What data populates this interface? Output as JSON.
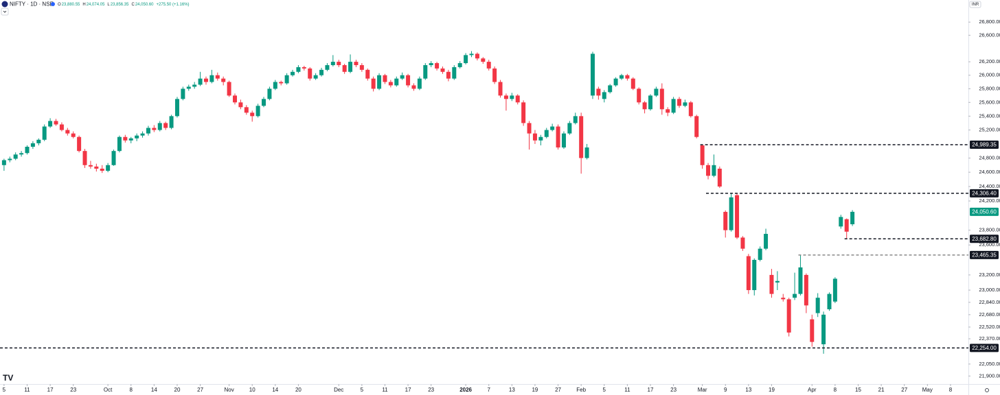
{
  "header": {
    "symbol": "NIFTY · 1D · NSE",
    "fields": [
      {
        "label": "O",
        "value": "23,880.55"
      },
      {
        "label": "H",
        "value": "24,074.05"
      },
      {
        "label": "L",
        "value": "23,856.35"
      },
      {
        "label": "C",
        "value": "24,050.60"
      }
    ],
    "change": "+275.50 (+1.16%)",
    "currency": "INR"
  },
  "chart_data": {
    "type": "candlestick",
    "log_scale": true,
    "up_color": "#089981",
    "down_color": "#f23645",
    "ylim": [
      21800,
      27140
    ],
    "xlim": [
      -0.7,
      167.1
    ],
    "yticks": [
      {
        "value": 26800,
        "label": "26,800.00"
      },
      {
        "value": 26600,
        "label": "26,600.00"
      },
      {
        "value": 26200,
        "label": "26,200.00"
      },
      {
        "value": 26000,
        "label": "26,000.00"
      },
      {
        "value": 25800,
        "label": "25,800.00"
      },
      {
        "value": 25600,
        "label": "25,600.00"
      },
      {
        "value": 25400,
        "label": "25,400.00"
      },
      {
        "value": 25200,
        "label": "25,200.00"
      },
      {
        "value": 24800,
        "label": "24,800.00"
      },
      {
        "value": 24600,
        "label": "24,600.00"
      },
      {
        "value": 24400,
        "label": "24,400.00"
      },
      {
        "value": 24200,
        "label": "24,200.00"
      },
      {
        "value": 23800,
        "label": "23,800.00"
      },
      {
        "value": 23600,
        "label": "23,600.00"
      },
      {
        "value": 23200,
        "label": "23,200.00"
      },
      {
        "value": 23000,
        "label": "23,000.00"
      },
      {
        "value": 22840,
        "label": "22,840.00"
      },
      {
        "value": 22680,
        "label": "22,680.00"
      },
      {
        "value": 22520,
        "label": "22,520.00"
      },
      {
        "value": 22370,
        "label": "22,370.00"
      },
      {
        "value": 22050,
        "label": "22,050.00"
      },
      {
        "value": 21900,
        "label": "21,900.00"
      }
    ],
    "xticks": [
      {
        "value": 0,
        "label": "5"
      },
      {
        "value": 4,
        "label": "11"
      },
      {
        "value": 8,
        "label": "17"
      },
      {
        "value": 12,
        "label": "23"
      },
      {
        "value": 18,
        "label": "Oct"
      },
      {
        "value": 22,
        "label": "8"
      },
      {
        "value": 26,
        "label": "14"
      },
      {
        "value": 30,
        "label": "20"
      },
      {
        "value": 34,
        "label": "27"
      },
      {
        "value": 39,
        "label": "Nov"
      },
      {
        "value": 43,
        "label": "10"
      },
      {
        "value": 47,
        "label": "14"
      },
      {
        "value": 51,
        "label": "20"
      },
      {
        "value": 58,
        "label": "Dec"
      },
      {
        "value": 62,
        "label": "5"
      },
      {
        "value": 66,
        "label": "11"
      },
      {
        "value": 70,
        "label": "17"
      },
      {
        "value": 74,
        "label": "23"
      },
      {
        "value": 80,
        "label": "2026"
      },
      {
        "value": 84,
        "label": "7"
      },
      {
        "value": 88,
        "label": "13"
      },
      {
        "value": 92,
        "label": "19"
      },
      {
        "value": 96,
        "label": "27"
      },
      {
        "value": 100,
        "label": "Feb"
      },
      {
        "value": 104,
        "label": "5"
      },
      {
        "value": 108,
        "label": "11"
      },
      {
        "value": 112,
        "label": "17"
      },
      {
        "value": 116,
        "label": "23"
      },
      {
        "value": 121,
        "label": "Mar"
      },
      {
        "value": 125,
        "label": "9"
      },
      {
        "value": 129,
        "label": "13"
      },
      {
        "value": 133,
        "label": "19"
      },
      {
        "value": 140,
        "label": "Apr"
      },
      {
        "value": 144,
        "label": "8"
      },
      {
        "value": 148,
        "label": "15"
      },
      {
        "value": 152,
        "label": "21"
      },
      {
        "value": 156,
        "label": "27"
      },
      {
        "value": 160,
        "label": "May"
      },
      {
        "value": 164,
        "label": "8"
      }
    ],
    "levels": [
      {
        "value": 24989.35,
        "label": "24,989.35",
        "from_index": 121,
        "color": "#131722"
      },
      {
        "value": 24306.4,
        "label": "24,306.40",
        "from_index": 122,
        "color": "#131722"
      },
      {
        "value": 23682.8,
        "label": "23,682.80",
        "from_index": 146,
        "color": "#131722"
      },
      {
        "value": 23465.35,
        "label": "23,465.35",
        "from_index": 138,
        "color": "#888888"
      },
      {
        "value": 22254.0,
        "label": "22,254.00",
        "from_index": 0,
        "color": "#131722"
      }
    ],
    "last_price": {
      "value": 24050.6,
      "label": "24,050.60"
    },
    "ohlc": [
      [
        24700,
        24790,
        24620,
        24770
      ],
      [
        24770,
        24820,
        24740,
        24790
      ],
      [
        24790,
        24880,
        24770,
        24850
      ],
      [
        24850,
        24900,
        24820,
        24870
      ],
      [
        24870,
        24980,
        24850,
        24960
      ],
      [
        24960,
        25040,
        24930,
        25010
      ],
      [
        25010,
        25080,
        24980,
        25060
      ],
      [
        25060,
        25280,
        25040,
        25250
      ],
      [
        25250,
        25370,
        25230,
        25330
      ],
      [
        25330,
        25360,
        25260,
        25280
      ],
      [
        25280,
        25310,
        25180,
        25200
      ],
      [
        25200,
        25230,
        25120,
        25150
      ],
      [
        25150,
        25180,
        25080,
        25100
      ],
      [
        25100,
        25120,
        24880,
        24900
      ],
      [
        24900,
        24930,
        24660,
        24700
      ],
      [
        24700,
        24760,
        24650,
        24680
      ],
      [
        24680,
        24720,
        24610,
        24650
      ],
      [
        24650,
        24700,
        24590,
        24620
      ],
      [
        24620,
        24730,
        24600,
        24700
      ],
      [
        24700,
        24920,
        24690,
        24900
      ],
      [
        24900,
        25120,
        24880,
        25100
      ],
      [
        25100,
        25130,
        25020,
        25050
      ],
      [
        25050,
        25100,
        25010,
        25080
      ],
      [
        25080,
        25150,
        25040,
        25120
      ],
      [
        25120,
        25180,
        25090,
        25150
      ],
      [
        25150,
        25260,
        25120,
        25230
      ],
      [
        25230,
        25270,
        25170,
        25200
      ],
      [
        25200,
        25330,
        25180,
        25300
      ],
      [
        25300,
        25320,
        25200,
        25230
      ],
      [
        25230,
        25420,
        25210,
        25400
      ],
      [
        25400,
        25680,
        25380,
        25650
      ],
      [
        25650,
        25830,
        25630,
        25800
      ],
      [
        25800,
        25860,
        25770,
        25830
      ],
      [
        25830,
        25900,
        25800,
        25860
      ],
      [
        25860,
        26050,
        25840,
        25950
      ],
      [
        25950,
        25980,
        25860,
        25900
      ],
      [
        25900,
        26080,
        25880,
        26000
      ],
      [
        26000,
        26040,
        25920,
        25950
      ],
      [
        25950,
        25980,
        25850,
        25900
      ],
      [
        25900,
        25920,
        25680,
        25700
      ],
      [
        25700,
        25730,
        25570,
        25600
      ],
      [
        25600,
        25640,
        25500,
        25530
      ],
      [
        25530,
        25560,
        25420,
        25450
      ],
      [
        25450,
        25480,
        25320,
        25400
      ],
      [
        25400,
        25580,
        25380,
        25550
      ],
      [
        25550,
        25680,
        25530,
        25650
      ],
      [
        25650,
        25830,
        25630,
        25800
      ],
      [
        25800,
        25930,
        25780,
        25900
      ],
      [
        25900,
        25920,
        25850,
        25880
      ],
      [
        25880,
        26030,
        25860,
        26000
      ],
      [
        26000,
        26080,
        25980,
        26050
      ],
      [
        26050,
        26150,
        26030,
        26120
      ],
      [
        26120,
        26140,
        26070,
        26100
      ],
      [
        26100,
        26120,
        25920,
        25950
      ],
      [
        25950,
        26030,
        25930,
        26000
      ],
      [
        26000,
        26110,
        25980,
        26080
      ],
      [
        26080,
        26180,
        26060,
        26150
      ],
      [
        26150,
        26300,
        26130,
        26200
      ],
      [
        26200,
        26230,
        26120,
        26150
      ],
      [
        26150,
        26170,
        26020,
        26050
      ],
      [
        26050,
        26310,
        26030,
        26200
      ],
      [
        26200,
        26230,
        26120,
        26150
      ],
      [
        26150,
        26180,
        26050,
        26080
      ],
      [
        26080,
        26100,
        25920,
        25950
      ],
      [
        25950,
        25980,
        25760,
        25800
      ],
      [
        25800,
        26030,
        25780,
        26000
      ],
      [
        26000,
        26020,
        25870,
        25900
      ],
      [
        25900,
        25930,
        25820,
        25850
      ],
      [
        25850,
        25980,
        25830,
        25950
      ],
      [
        25950,
        26040,
        25930,
        26000
      ],
      [
        26000,
        26020,
        25820,
        25850
      ],
      [
        25850,
        25880,
        25770,
        25800
      ],
      [
        25800,
        25980,
        25780,
        25950
      ],
      [
        25950,
        26180,
        25930,
        26150
      ],
      [
        26150,
        26210,
        26120,
        26180
      ],
      [
        26180,
        26200,
        26070,
        26100
      ],
      [
        26100,
        26130,
        26020,
        26050
      ],
      [
        26050,
        26080,
        25910,
        25950
      ],
      [
        25950,
        26150,
        25930,
        26120
      ],
      [
        26120,
        26210,
        26100,
        26180
      ],
      [
        26180,
        26330,
        26160,
        26300
      ],
      [
        26300,
        26360,
        26270,
        26320
      ],
      [
        26320,
        26340,
        26220,
        26250
      ],
      [
        26250,
        26270,
        26170,
        26200
      ],
      [
        26200,
        26230,
        26070,
        26100
      ],
      [
        26100,
        26130,
        25870,
        25900
      ],
      [
        25900,
        25930,
        25670,
        25700
      ],
      [
        25700,
        25730,
        25480,
        25650
      ],
      [
        25650,
        25740,
        25620,
        25700
      ],
      [
        25700,
        25720,
        25570,
        25600
      ],
      [
        25600,
        25630,
        25260,
        25300
      ],
      [
        25300,
        25330,
        24920,
        25150
      ],
      [
        25150,
        25200,
        25000,
        25050
      ],
      [
        25050,
        25130,
        24980,
        25100
      ],
      [
        25100,
        25230,
        25080,
        25200
      ],
      [
        25200,
        25290,
        25180,
        25250
      ],
      [
        25250,
        25280,
        24920,
        24950
      ],
      [
        24950,
        25180,
        24930,
        25150
      ],
      [
        25150,
        25330,
        25130,
        25300
      ],
      [
        25300,
        25450,
        25280,
        25400
      ],
      [
        25400,
        25450,
        24580,
        24800
      ],
      [
        24800,
        25000,
        24780,
        24950
      ],
      [
        25700,
        26350,
        25650,
        26320
      ],
      [
        25800,
        25830,
        25640,
        25700
      ],
      [
        25650,
        25780,
        25600,
        25750
      ],
      [
        25750,
        25870,
        25730,
        25850
      ],
      [
        25850,
        25970,
        25830,
        25950
      ],
      [
        25950,
        26020,
        25930,
        26000
      ],
      [
        26000,
        26020,
        25920,
        25950
      ],
      [
        25950,
        25970,
        25780,
        25800
      ],
      [
        25800,
        25820,
        25570,
        25600
      ],
      [
        25600,
        25620,
        25440,
        25500
      ],
      [
        25500,
        25720,
        25480,
        25700
      ],
      [
        25700,
        25830,
        25680,
        25800
      ],
      [
        25800,
        25880,
        25420,
        25500
      ],
      [
        25500,
        25530,
        25400,
        25450
      ],
      [
        25450,
        25680,
        25430,
        25650
      ],
      [
        25650,
        25680,
        25520,
        25550
      ],
      [
        25550,
        25640,
        25530,
        25600
      ],
      [
        25600,
        25620,
        25380,
        25400
      ],
      [
        25400,
        25420,
        25080,
        25100
      ],
      [
        24980,
        24990,
        24650,
        24700
      ],
      [
        24700,
        24730,
        24500,
        24550
      ],
      [
        24550,
        24850,
        24530,
        24700
      ],
      [
        24650,
        24680,
        24380,
        24400
      ],
      [
        24050,
        24070,
        23700,
        23800
      ],
      [
        23800,
        24300,
        23780,
        24250
      ],
      [
        24280,
        24300,
        23680,
        23700
      ],
      [
        23700,
        23720,
        23520,
        23550
      ],
      [
        23450,
        23480,
        22950,
        23000
      ],
      [
        23000,
        23420,
        22930,
        23400
      ],
      [
        23400,
        23580,
        23380,
        23550
      ],
      [
        23550,
        23820,
        23530,
        23750
      ],
      [
        23200,
        23280,
        22900,
        22950
      ],
      [
        23100,
        23250,
        23000,
        23120
      ],
      [
        22900,
        22950,
        22850,
        22880
      ],
      [
        22880,
        22900,
        22400,
        22450
      ],
      [
        22900,
        23230,
        22870,
        22950
      ],
      [
        22950,
        23465,
        22930,
        23300
      ],
      [
        23200,
        23220,
        22700,
        22800
      ],
      [
        22620,
        22680,
        22270,
        22330
      ],
      [
        22700,
        22960,
        22650,
        22900
      ],
      [
        22300,
        22720,
        22180,
        22680
      ],
      [
        22750,
        22970,
        22730,
        22950
      ],
      [
        22850,
        23170,
        22830,
        23150
      ],
      [
        23850,
        24010,
        23820,
        23980
      ],
      [
        23950,
        23960,
        23680,
        23780
      ],
      [
        23880.55,
        24074.05,
        23856.35,
        24050.6
      ]
    ]
  }
}
